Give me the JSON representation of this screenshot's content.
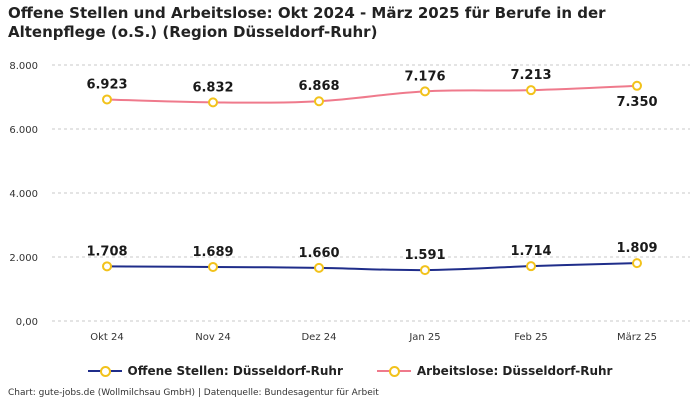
{
  "title": "Offene Stellen und Arbeitslose: Okt 2024 - März 2025 für Berufe in der Altenpflege (o.S.) (Region Düsseldorf-Ruhr)",
  "source": "Chart: gute-jobs.de (Wollmilchsau GmbH) | Datenquelle: Bundesagentur für Arbeit",
  "chart_data": {
    "type": "line",
    "title": "Offene Stellen und Arbeitslose: Okt 2024 - März 2025 für Berufe in der Altenpflege (o.S.) (Region Düsseldorf-Ruhr)",
    "categories": [
      "Okt 24",
      "Nov 24",
      "Dez 24",
      "Jan 25",
      "Feb 25",
      "März 25"
    ],
    "ylim": [
      0,
      8000
    ],
    "yticks": [
      0,
      2000,
      4000,
      6000,
      8000
    ],
    "ytick_labels": [
      "0,00",
      "2.000",
      "4.000",
      "6.000",
      "8.000"
    ],
    "grid": true,
    "legend": "bottom",
    "series": [
      {
        "name": "Offene Stellen: Düsseldorf-Ruhr",
        "color": "#1f2d8a",
        "values": [
          1708,
          1689,
          1660,
          1591,
          1714,
          1809
        ],
        "labels": [
          "1.708",
          "1.689",
          "1.660",
          "1.591",
          "1.714",
          "1.809"
        ]
      },
      {
        "name": "Arbeitslose: Düsseldorf-Ruhr",
        "color": "#ef7a8c",
        "values": [
          6923,
          6832,
          6868,
          7176,
          7213,
          7350
        ],
        "labels": [
          "6.923",
          "6.832",
          "6.868",
          "7.176",
          "7.213",
          "7.350"
        ]
      }
    ],
    "marker_color": "#f2c21b"
  }
}
